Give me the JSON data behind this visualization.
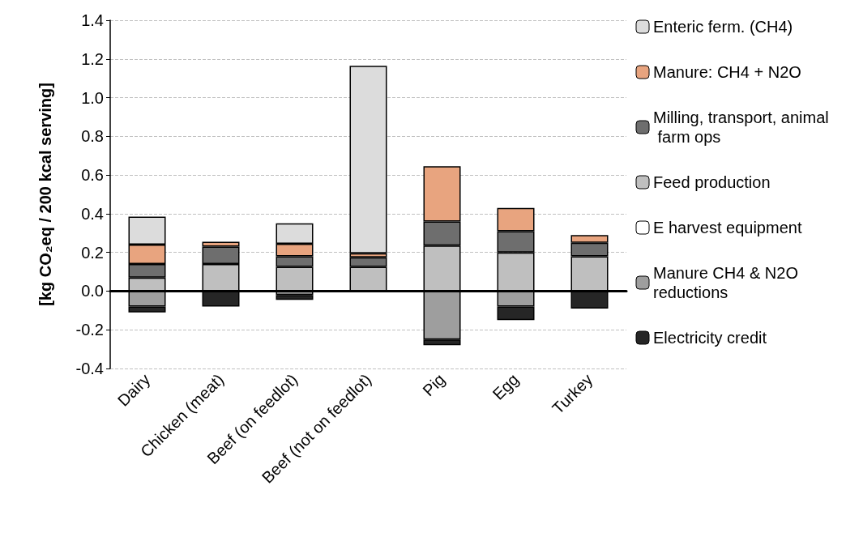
{
  "chart_data": {
    "type": "bar",
    "stacked": true,
    "ylabel": "[kg CO₂eq / 200 kcal serving]",
    "categories": [
      "Dairy",
      "Chicken (meat)",
      "Beef (on feedlot)",
      "Beef (not on feedlot)",
      "Pig",
      "Egg",
      "Turkey"
    ],
    "series": [
      {
        "name": "E harvest equipment",
        "color": "#ffffff",
        "values": [
          0,
          0,
          0,
          0,
          0,
          0,
          0
        ]
      },
      {
        "name": "Feed production",
        "color": "#bfbfbf",
        "values": [
          0.07,
          0.14,
          0.125,
          0.125,
          0.235,
          0.2,
          0.18
        ]
      },
      {
        "name": "Milling, transport, animal farm ops",
        "color": "#6e6e6e",
        "values": [
          0.07,
          0.09,
          0.055,
          0.05,
          0.125,
          0.11,
          0.07
        ]
      },
      {
        "name": "Manure: CH4 + N2O",
        "color": "#e8a47f",
        "values": [
          0.1,
          0.025,
          0.065,
          0.02,
          0.285,
          0.12,
          0.04
        ]
      },
      {
        "name": "Enteric ferm. (CH4)",
        "color": "#dcdcdc",
        "values": [
          0.145,
          0,
          0.105,
          0.97,
          0,
          0,
          0
        ]
      },
      {
        "name": "Manure CH4 & N2O reductions",
        "color": "#9e9e9e",
        "values": [
          -0.08,
          0,
          -0.02,
          0,
          -0.25,
          -0.08,
          0
        ]
      },
      {
        "name": "Electricity credit",
        "color": "#262626",
        "values": [
          -0.03,
          -0.08,
          -0.025,
          0,
          -0.03,
          -0.07,
          -0.09
        ]
      }
    ],
    "ylim": [
      -0.4,
      1.4
    ],
    "yticks": [
      -0.4,
      -0.2,
      {
        "value": 0,
        "label": "0.0"
      },
      0.2,
      0.4,
      0.6,
      0.8,
      {
        "value": 1,
        "label": "1.0"
      },
      1.2,
      1.4
    ],
    "grid": "y",
    "legend": "right"
  }
}
